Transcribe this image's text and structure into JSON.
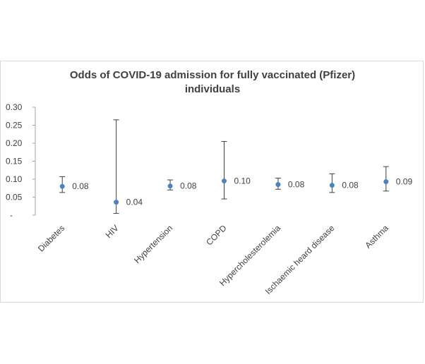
{
  "chart_data": {
    "type": "scatter",
    "title": "Odds of COVID-19 admission for fully vaccinated (Pfizer) individuals",
    "title_line1": "Odds of COVID-19 admission for fully vaccinated (Pfizer)",
    "title_line2": "individuals",
    "xlabel": "",
    "ylabel": "",
    "categories": [
      "Diabetes",
      "HIV",
      "Hypertension",
      "COPD",
      "Hypercholesterolemia",
      "Ischaemic heard disease",
      "Asthma"
    ],
    "values": [
      0.08,
      0.036,
      0.081,
      0.095,
      0.085,
      0.083,
      0.093
    ],
    "data_labels": [
      "0.08",
      "0.04",
      "0.08",
      "0.10",
      "0.08",
      "0.08",
      "0.09"
    ],
    "error_low": [
      0.063,
      0.005,
      0.07,
      0.045,
      0.072,
      0.063,
      0.067
    ],
    "error_high": [
      0.107,
      0.265,
      0.098,
      0.205,
      0.103,
      0.115,
      0.135
    ],
    "y_ticks": [
      "-",
      "0.05",
      "0.10",
      "0.15",
      "0.20",
      "0.25",
      "0.30"
    ],
    "ylim": [
      0,
      0.3
    ],
    "grid": false,
    "legend": "none",
    "colors": {
      "marker": "#4f81bd",
      "error_bar": "#404040",
      "axis": "#a6a6a6",
      "text": "#404040"
    }
  }
}
